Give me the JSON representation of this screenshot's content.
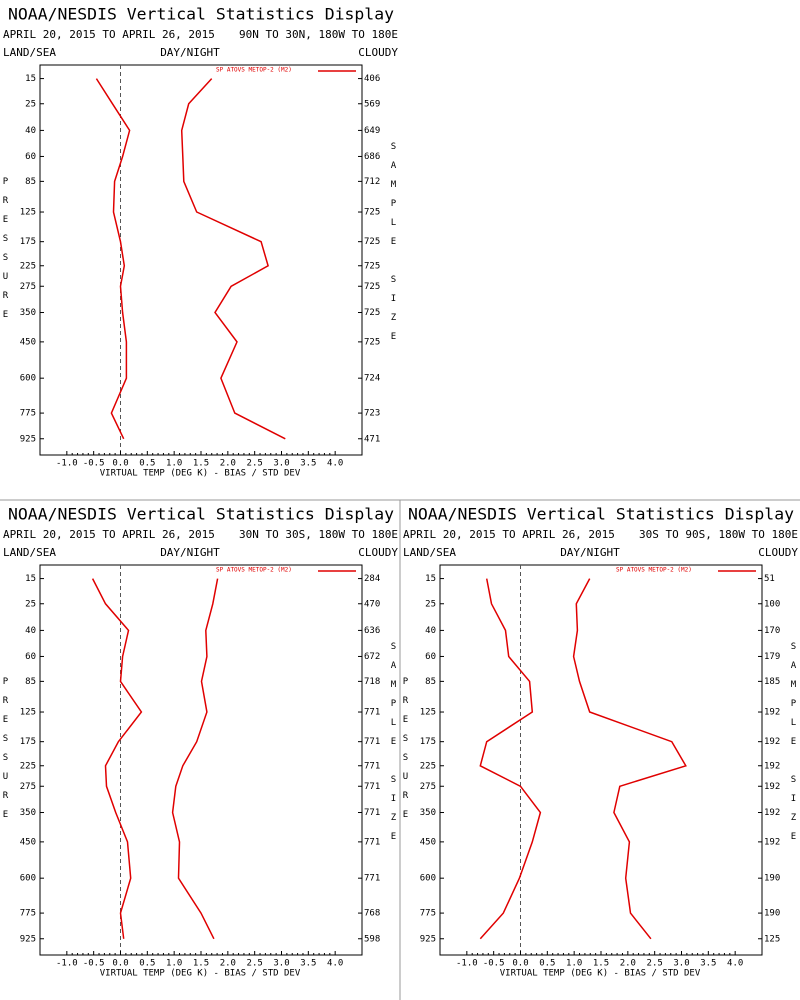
{
  "chart_data": [
    {
      "type": "line",
      "title": "NOAA/NESDIS Vertical Statistics Display",
      "date_range": "APRIL 20, 2015 TO APRIL 26, 2015",
      "region": "90N TO 30N, 180W TO 180E",
      "land_sea": "LAND/SEA",
      "day_night": "DAY/NIGHT",
      "cloud": "CLOUDY",
      "x_label": "VIRTUAL TEMP (DEG K) - BIAS / STD DEV",
      "y_label": "PRESSURE",
      "y2_label": "SAMPLE SIZE",
      "y": [
        15,
        25,
        40,
        60,
        85,
        125,
        175,
        225,
        275,
        350,
        450,
        600,
        775,
        925
      ],
      "y_scale": "pressure",
      "ylim": [
        11,
        1030
      ],
      "xlim": [
        -1.5,
        4.5
      ],
      "xticks": [
        {
          "value": -1,
          "label": "-1.0"
        },
        -0.5,
        {
          "value": 0,
          "label": "0.0"
        },
        0.5,
        {
          "value": 1,
          "label": "1.0"
        },
        1.5,
        {
          "value": 2,
          "label": "2.0"
        },
        2.5,
        {
          "value": 3,
          "label": "3.0"
        },
        3.5,
        {
          "value": 4,
          "label": "4.0"
        }
      ],
      "series": [
        {
          "name": "SP ATOVS METOP-2 (M2)",
          "color": "#e00000",
          "values": [
            -0.45,
            -0.15,
            0.17,
            0.04,
            -0.11,
            -0.13,
            0.0,
            0.07,
            0.0,
            0.04,
            0.11,
            0.11,
            -0.17,
            0.06
          ],
          "std_dev": [
            1.7,
            1.27,
            1.14,
            1.16,
            1.18,
            1.42,
            2.62,
            2.75,
            2.06,
            1.76,
            2.17,
            1.87,
            2.13,
            3.07
          ]
        }
      ],
      "sample_size": [
        406,
        569,
        649,
        686,
        712,
        725,
        725,
        725,
        725,
        725,
        725,
        724,
        723,
        471
      ]
    },
    {
      "type": "line",
      "title": "NOAA/NESDIS Vertical Statistics Display",
      "date_range": "APRIL 20, 2015 TO APRIL 26, 2015",
      "region": "30N TO 30S, 180W TO 180E",
      "land_sea": "LAND/SEA",
      "day_night": "DAY/NIGHT",
      "cloud": "CLOUDY",
      "x_label": "VIRTUAL TEMP (DEG K) - BIAS / STD DEV",
      "y_label": "PRESSURE",
      "y2_label": "SAMPLE SIZE",
      "y": [
        15,
        25,
        40,
        60,
        85,
        125,
        175,
        225,
        275,
        350,
        450,
        600,
        775,
        925
      ],
      "y_scale": "pressure",
      "ylim": [
        11,
        1030
      ],
      "xlim": [
        -1.5,
        4.5
      ],
      "xticks": [
        {
          "value": -1,
          "label": "-1.0"
        },
        -0.5,
        {
          "value": 0,
          "label": "0.0"
        },
        0.5,
        {
          "value": 1,
          "label": "1.0"
        },
        1.5,
        {
          "value": 2,
          "label": "2.0"
        },
        2.5,
        {
          "value": 3,
          "label": "3.0"
        },
        3.5,
        {
          "value": 4,
          "label": "4.0"
        }
      ],
      "series": [
        {
          "name": "SP ATOVS METOP-2 (M2)",
          "color": "#e00000",
          "values": [
            -0.52,
            -0.28,
            0.15,
            0.04,
            0.0,
            0.39,
            -0.04,
            -0.28,
            -0.26,
            -0.09,
            0.13,
            0.19,
            0.0,
            0.06
          ],
          "std_dev": [
            1.81,
            1.72,
            1.59,
            1.61,
            1.51,
            1.61,
            1.42,
            1.16,
            1.03,
            0.97,
            1.1,
            1.08,
            1.5,
            1.74
          ]
        }
      ],
      "sample_size": [
        284,
        470,
        636,
        672,
        718,
        771,
        771,
        771,
        771,
        771,
        771,
        771,
        768,
        598
      ]
    },
    {
      "type": "line",
      "title": "NOAA/NESDIS Vertical Statistics Display",
      "date_range": "APRIL 20, 2015 TO APRIL 26, 2015",
      "region": "30S TO 90S, 180W TO 180E",
      "land_sea": "LAND/SEA",
      "day_night": "DAY/NIGHT",
      "cloud": "CLOUDY",
      "x_label": "VIRTUAL TEMP (DEG K) - BIAS / STD DEV",
      "y_label": "PRESSURE",
      "y2_label": "SAMPLE SIZE",
      "y": [
        15,
        25,
        40,
        60,
        85,
        125,
        175,
        225,
        275,
        350,
        450,
        600,
        775,
        925
      ],
      "y_scale": "pressure",
      "ylim": [
        11,
        1030
      ],
      "xlim": [
        -1.5,
        4.5
      ],
      "xticks": [
        {
          "value": -1,
          "label": "-1.0"
        },
        -0.5,
        {
          "value": 0,
          "label": "0.0"
        },
        0.5,
        {
          "value": 1,
          "label": "1.0"
        },
        1.5,
        {
          "value": 2,
          "label": "2.0"
        },
        2.5,
        {
          "value": 3,
          "label": "3.0"
        },
        3.5,
        {
          "value": 4,
          "label": "4.0"
        }
      ],
      "series": [
        {
          "name": "SP ATOVS METOP-2 (M2)",
          "color": "#e00000",
          "values": [
            -0.63,
            -0.54,
            -0.28,
            -0.22,
            0.17,
            0.22,
            -0.63,
            -0.75,
            0.0,
            0.37,
            0.22,
            -0.02,
            -0.32,
            -0.75
          ],
          "std_dev": [
            1.29,
            1.04,
            1.06,
            0.99,
            1.1,
            1.29,
            2.82,
            3.08,
            1.85,
            1.74,
            2.03,
            1.96,
            2.05,
            2.43
          ]
        }
      ],
      "sample_size": [
        51,
        100,
        170,
        179,
        185,
        192,
        192,
        192,
        192,
        192,
        192,
        190,
        190,
        125
      ]
    }
  ]
}
